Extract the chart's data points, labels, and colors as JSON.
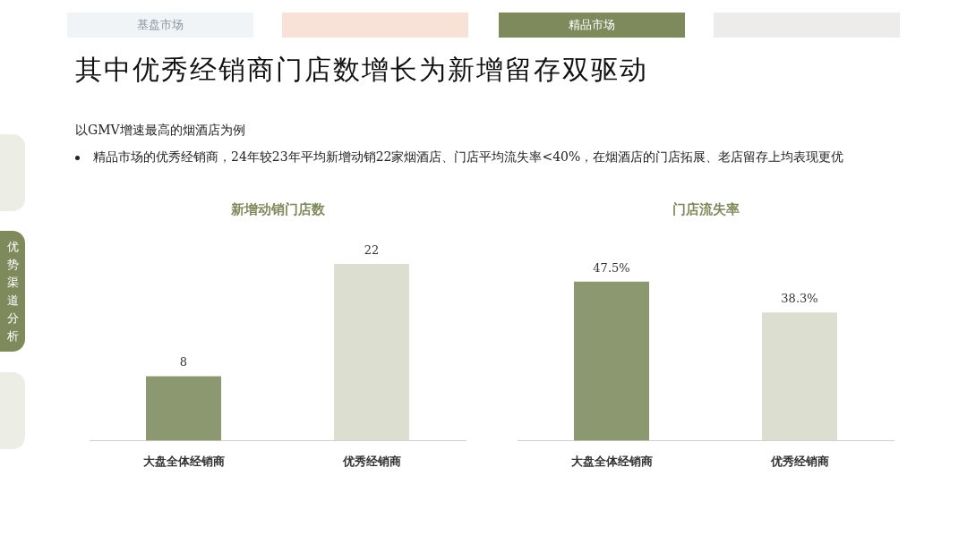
{
  "chart_data": [
    {
      "type": "bar",
      "title": "新增动销门店数",
      "categories": [
        "大盘全体经销商",
        "优秀经销商"
      ],
      "values": [
        8,
        22
      ],
      "colors": [
        "#8c9970",
        "#dcdfcf"
      ],
      "tick_labels": "x",
      "data_labels": true,
      "annotations": [
        "基盘市场",
        "精品市场",
        "优势渠道分析",
        "其中优秀经销商门店数增长为新增留存双驱动",
        "以GMV增速最高的烟酒店为例",
        "精品市场的优秀经销商，24年较23年平均新增动销22家烟酒店、门店平均流失率<40%，在烟酒店的门店拓展、老店留存上均表现更优"
      ]
    },
    {
      "type": "bar",
      "title": "门店流失率",
      "categories": [
        "大盘全体经销商",
        "优秀经销商"
      ],
      "values": [
        47.5,
        38.3
      ],
      "colors": [
        "#8c9970",
        "#dcdfcf"
      ],
      "tick_labels": "x",
      "value_labels": [
        "47.5%",
        "38.3%"
      ]
    }
  ]
}
